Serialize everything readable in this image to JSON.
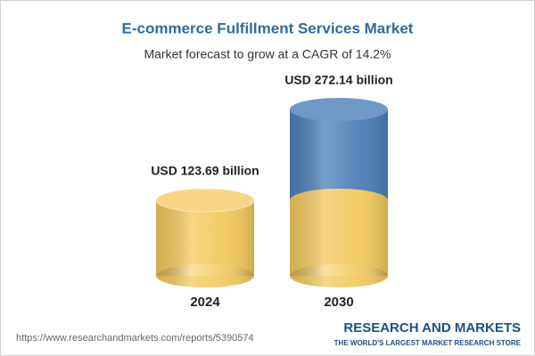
{
  "chart_data": {
    "type": "cylinder-bar",
    "title": "E-commerce Fulfillment Services Market",
    "subtitle": "Market forecast to grow at a CAGR of 14.2%",
    "categories": [
      "2024",
      "2030"
    ],
    "values": [
      123.69,
      272.14
    ],
    "value_labels": [
      "USD 123.69 billion",
      "USD 272.14 billion"
    ],
    "colors": [
      "#f3c95e",
      "#4b7fb8"
    ]
  },
  "footer": {
    "url": "https://www.researchandmarkets.com/reports/5390574",
    "brand": "RESEARCH AND MARKETS",
    "tagline": "THE WORLD'S LARGEST MARKET RESEARCH STORE"
  }
}
